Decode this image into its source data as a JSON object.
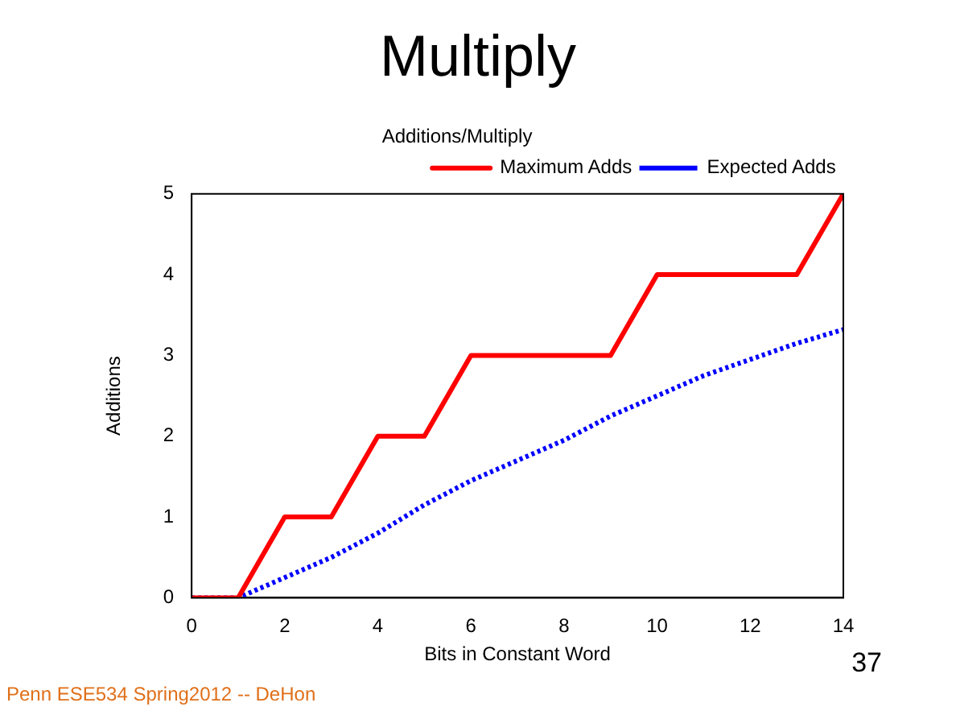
{
  "chart_data": {
    "type": "line",
    "title": "Multiply",
    "subtitle": "Additions/Multiply",
    "xlabel": "Bits in Constant Word",
    "ylabel": "Additions",
    "x": [
      0,
      1,
      2,
      3,
      4,
      5,
      6,
      7,
      8,
      9,
      10,
      11,
      12,
      13,
      14
    ],
    "series": [
      {
        "name": "Maximum Adds",
        "color": "#ff0000",
        "line_style": "solid",
        "values": [
          0,
          0,
          1,
          1,
          2,
          2,
          3,
          3,
          3,
          3,
          4,
          4,
          4,
          4,
          5
        ]
      },
      {
        "name": "Expected Adds",
        "color": "#0000ff",
        "line_style": "dotted",
        "values": [
          0,
          0,
          0.25,
          0.5,
          0.8,
          1.15,
          1.45,
          1.7,
          1.95,
          2.25,
          2.5,
          2.75,
          2.95,
          3.15,
          3.32
        ]
      }
    ],
    "xlim": [
      0,
      14
    ],
    "xticks": [
      0,
      2,
      4,
      6,
      8,
      10,
      12,
      14
    ],
    "ylim": [
      0,
      5
    ],
    "yticks": [
      0,
      1,
      2,
      3,
      4,
      5
    ],
    "grid": false,
    "legend": "top right",
    "marker": "none",
    "annotations": [
      "Penn ESE534 Spring2012 -- DeHon",
      "37"
    ]
  }
}
